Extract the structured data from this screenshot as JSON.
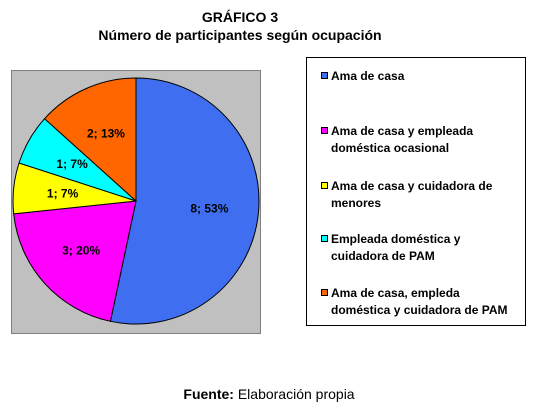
{
  "header": {
    "title": "GRÁFICO 3",
    "subtitle": "Número de participantes según ocupación"
  },
  "chart_data": {
    "type": "pie",
    "title": "Número de participantes según ocupación",
    "series": [
      {
        "name": "Ama de casa",
        "value": 8,
        "percent": 53,
        "label": "8; 53%",
        "color": "#3f6ff0"
      },
      {
        "name": "Ama de casa y empleada doméstica ocasional",
        "value": 3,
        "percent": 20,
        "label": "3; 20%",
        "color": "#ff00ff"
      },
      {
        "name": "Ama de casa y cuidadora de menores",
        "value": 1,
        "percent": 7,
        "label": "1; 7%",
        "color": "#ffff00"
      },
      {
        "name": "Empleada doméstica y cuidadora de PAM",
        "value": 1,
        "percent": 7,
        "label": "1; 7%",
        "color": "#00ffff"
      },
      {
        "name": "Ama de casa, empleda doméstica y cuidadora de PAM",
        "value": 2,
        "percent": 13,
        "label": "2; 13%",
        "color": "#ff6600"
      }
    ],
    "start_angle_deg": 0,
    "direction": "clockwise",
    "legend_position": "right"
  },
  "legend": {
    "items": [
      {
        "line1": "Ama de casa",
        "line2": ""
      },
      {
        "line1": "Ama de casa y empleada",
        "line2": "doméstica ocasional"
      },
      {
        "line1": "Ama de casa y cuidadora de",
        "line2": "menores"
      },
      {
        "line1": "Empleada doméstica y",
        "line2": "cuidadora de PAM"
      },
      {
        "line1": "Ama de casa, empleda",
        "line2": "doméstica y cuidadora de PAM"
      }
    ]
  },
  "footer": {
    "source_label": "Fuente:",
    "source_text": " Elaboración propia"
  }
}
